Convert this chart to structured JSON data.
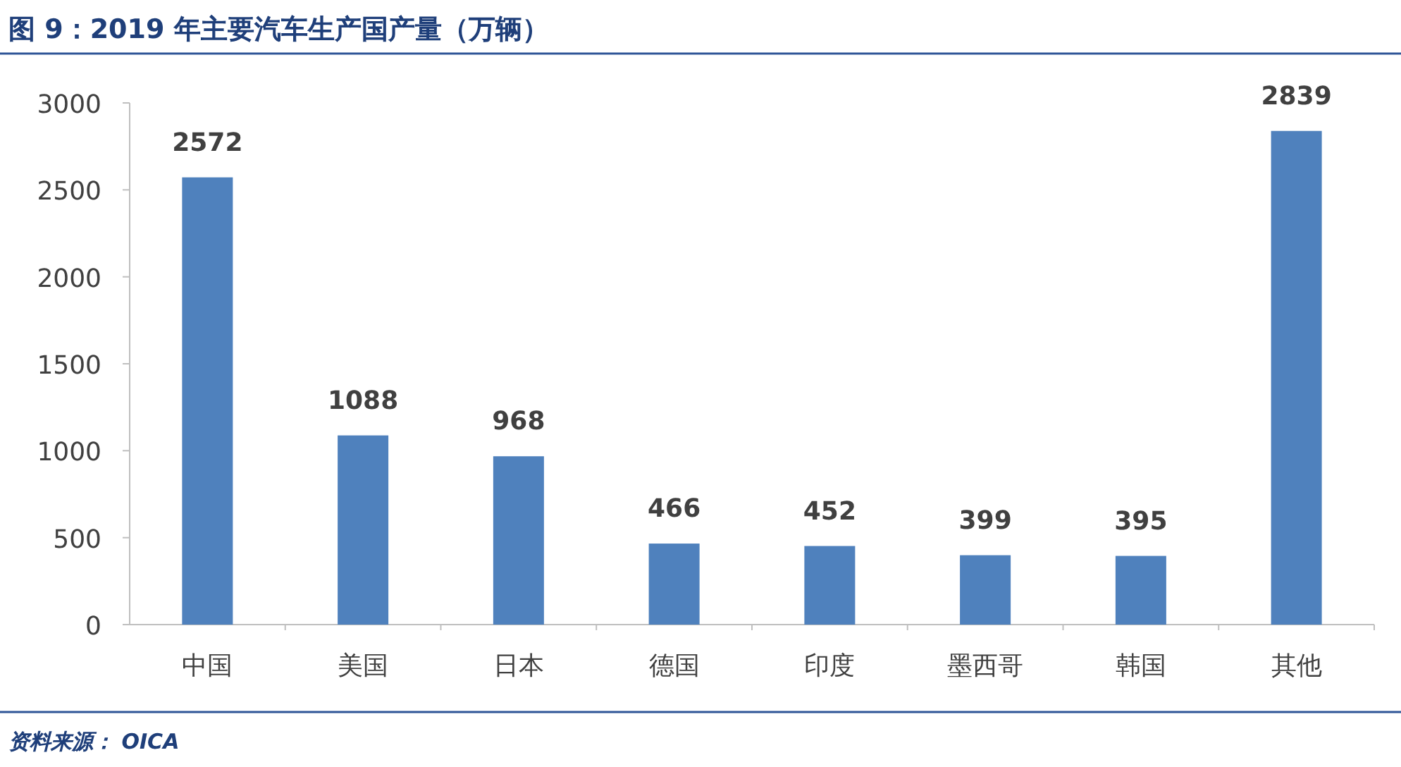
{
  "chart_data": {
    "type": "bar",
    "title": "图 9：2019 年主要汽车生产国产量（万辆）",
    "categories": [
      "中国",
      "美国",
      "日本",
      "德国",
      "印度",
      "墨西哥",
      "韩国",
      "其他"
    ],
    "values": [
      2572,
      1088,
      968,
      466,
      452,
      399,
      395,
      2839
    ],
    "color": "#4f81bd",
    "ylim": [
      0,
      3000
    ],
    "yticks": [
      0,
      500,
      1000,
      1500,
      2000,
      2500,
      3000
    ],
    "grid": false,
    "data_labels": true,
    "annotations": [
      "资料来源： OICA"
    ]
  }
}
